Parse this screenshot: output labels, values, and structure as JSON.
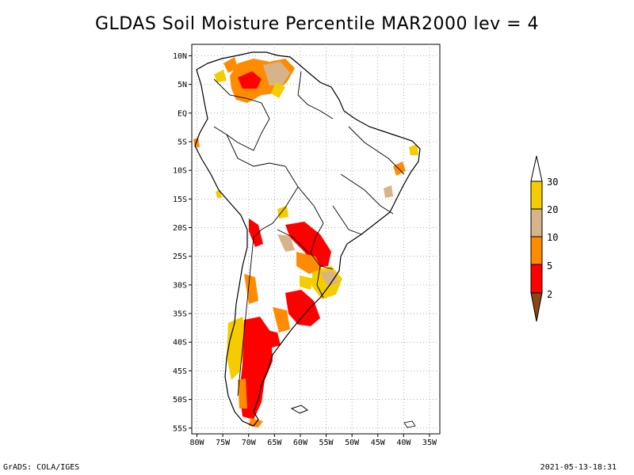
{
  "title": "GLDAS Soil Moisture Percentile MAR2000 lev = 4",
  "footer": {
    "left": "GrADS: COLA/IGES",
    "right": "2021-05-13-18:31"
  },
  "map": {
    "lat_ticks": [
      "10N",
      "5N",
      "EQ",
      "5S",
      "10S",
      "15S",
      "20S",
      "25S",
      "30S",
      "35S",
      "40S",
      "45S",
      "50S",
      "55S"
    ],
    "lon_ticks": [
      "80W",
      "75W",
      "70W",
      "65W",
      "60W",
      "55W",
      "50W",
      "45W",
      "40W",
      "35W"
    ],
    "lon_range": [
      -81,
      -33
    ],
    "lat_range": [
      -56,
      12
    ]
  },
  "colorbar": {
    "labels": [
      "30",
      "20",
      "10",
      "5",
      "2"
    ],
    "colors": {
      "above30": "#ffffff",
      "c20_30": "#f5cc00",
      "c10_20": "#d6b48a",
      "c5_10": "#ff8c00",
      "c2_5": "#ff0000",
      "below2": "#8b4513"
    }
  }
}
